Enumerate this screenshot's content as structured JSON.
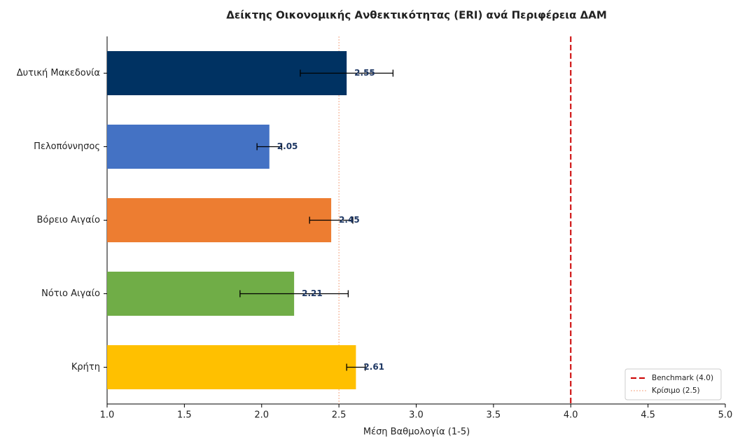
{
  "chart_data": {
    "type": "bar",
    "orientation": "horizontal",
    "title": "Δείκτης Οικονομικής Ανθεκτικότητας (ERI) ανά Περιφέρεια ΔΑΜ",
    "x_label": "Μέση Βαθμολογία (1-5)",
    "categories": [
      "Δυτική Μακεδονία",
      "Πελοπόννησος",
      "Βόρειο Αιγαίο",
      "Νότιο Αιγαίο",
      "Κρήτη"
    ],
    "values": [
      2.55,
      2.05,
      2.45,
      2.21,
      2.61
    ],
    "errors": [
      0.3,
      0.08,
      0.14,
      0.35,
      0.06
    ],
    "colors": [
      "#003262",
      "#4472c4",
      "#ed7d31",
      "#70ad47",
      "#ffc000"
    ],
    "xlim": [
      1.0,
      5.0
    ],
    "xticks": [
      {
        "value": 1.0,
        "label": "1.0"
      },
      {
        "value": 1.5,
        "label": "1.5"
      },
      {
        "value": 2.0,
        "label": "2.0"
      },
      {
        "value": 2.5,
        "label": "2.5"
      },
      {
        "value": 3.0,
        "label": "3.0"
      },
      {
        "value": 3.5,
        "label": "3.5"
      },
      {
        "value": 4.0,
        "label": "4.0"
      },
      {
        "value": 4.5,
        "label": "4.5"
      },
      {
        "value": 5.0,
        "label": "5.0"
      }
    ],
    "reference_lines": [
      {
        "name": "Benchmark (4.0)",
        "value": 4.0,
        "color": "#cc0000",
        "style": "dashed"
      },
      {
        "name": "Κρίσιμο (2.5)",
        "value": 2.5,
        "color": "#f4a582",
        "style": "dotted"
      }
    ],
    "legend_position": "lower right"
  }
}
